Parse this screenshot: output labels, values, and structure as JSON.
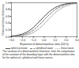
{
  "chart_data": {
    "type": "line",
    "xlabel": "Exponent of dimensionless time (10^x)",
    "ylabel": "Dimensionless thickness",
    "x": [
      -3,
      -2.5,
      -2,
      -1.5,
      -1,
      -0.5,
      0,
      0.5,
      1,
      1.5,
      2,
      2.5,
      3
    ],
    "series": [
      {
        "name": "spherical wave",
        "color": "#222222",
        "line_style": "solid",
        "values": [
          0.02,
          0.04,
          0.08,
          0.15,
          0.27,
          0.43,
          0.6,
          0.75,
          0.86,
          0.93,
          0.97,
          0.99,
          1.0
        ]
      },
      {
        "name": "cylindrical wave",
        "color": "#555555",
        "line_style": "dashed",
        "values": [
          0.01,
          0.02,
          0.05,
          0.1,
          0.19,
          0.33,
          0.5,
          0.66,
          0.8,
          0.89,
          0.95,
          0.98,
          0.99
        ]
      },
      {
        "name": "linear wave",
        "color": "#888888",
        "line_style": "dotted",
        "values": [
          0.0,
          0.01,
          0.03,
          0.06,
          0.12,
          0.23,
          0.38,
          0.55,
          0.71,
          0.83,
          0.91,
          0.96,
          0.98
        ]
      }
    ],
    "xlim": [
      -3,
      3
    ],
    "xticks": [
      -3,
      -2,
      -1,
      0,
      1,
      2,
      3
    ],
    "ylim": [
      0,
      1
    ],
    "yticks": [
      0,
      0.2,
      0.4,
      0.6,
      0.8,
      1
    ],
    "legend": "bottom",
    "caption": "The variation of a dimensionless thickness, from the computation of the variation of the boundary layer with the dimensionless time for the spherical, cylindrical and linear waves."
  }
}
